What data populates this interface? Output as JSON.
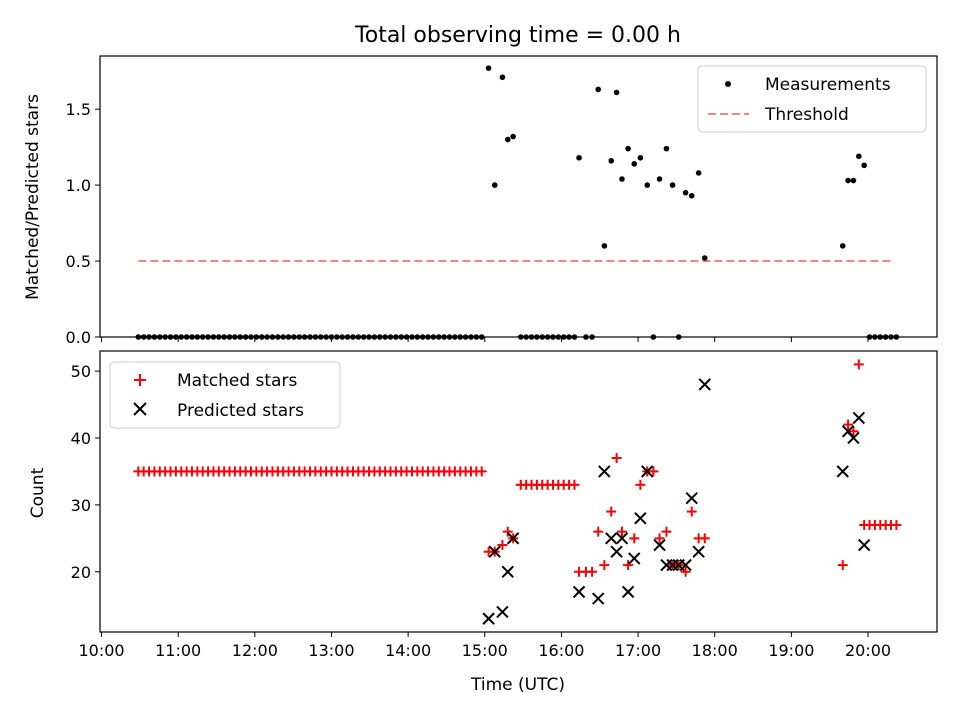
{
  "chart_data": [
    {
      "type": "scatter",
      "title": "Total observing time = 0.00 h",
      "xlabel": "",
      "ylabel": "Matched/Predicted stars",
      "xlim": [
        9.98,
        20.9
      ],
      "ylim": [
        0,
        1.85
      ],
      "yticks": [
        0.0,
        0.5,
        1.0,
        1.5
      ],
      "ytick_labels": [
        "0.0",
        "0.5",
        "1.0",
        "1.5"
      ],
      "legend": {
        "position": "top-right",
        "entries": [
          {
            "label": "Measurements",
            "marker": "dot",
            "color": "#000000"
          },
          {
            "label": "Threshold",
            "marker": "dashed-line",
            "color": "#ff7f7f"
          }
        ]
      },
      "threshold": {
        "value": 0.5,
        "x_start": 10.48,
        "x_end": 20.33
      },
      "series": [
        {
          "name": "Measurements",
          "x": [
            10.48,
            10.55,
            10.62,
            10.69,
            10.76,
            10.83,
            10.9,
            10.97,
            11.04,
            11.11,
            11.18,
            11.25,
            11.32,
            11.39,
            11.46,
            11.53,
            11.6,
            11.67,
            11.74,
            11.81,
            11.88,
            11.95,
            12.02,
            12.09,
            12.16,
            12.23,
            12.3,
            12.37,
            12.44,
            12.51,
            12.58,
            12.65,
            12.72,
            12.79,
            12.86,
            12.93,
            13.0,
            13.07,
            13.14,
            13.21,
            13.28,
            13.35,
            13.42,
            13.49,
            13.56,
            13.63,
            13.7,
            13.77,
            13.84,
            13.91,
            13.98,
            14.05,
            14.12,
            14.19,
            14.26,
            14.33,
            14.4,
            14.47,
            14.54,
            14.61,
            14.68,
            14.75,
            14.82,
            14.89,
            14.96,
            15.05,
            15.13,
            15.23,
            15.3,
            15.37,
            15.47,
            15.54,
            15.61,
            15.68,
            15.75,
            15.82,
            15.89,
            15.96,
            16.03,
            16.1,
            16.17,
            16.23,
            16.32,
            16.4,
            16.48,
            16.56,
            16.65,
            16.72,
            16.79,
            16.87,
            16.95,
            17.03,
            17.12,
            17.2,
            17.28,
            17.37,
            17.45,
            17.53,
            17.62,
            17.7,
            17.79,
            17.87,
            19.67,
            19.74,
            19.81,
            19.88,
            19.95,
            20.02,
            20.09,
            20.16,
            20.23,
            20.3,
            20.37
          ],
          "y": [
            0,
            0,
            0,
            0,
            0,
            0,
            0,
            0,
            0,
            0,
            0,
            0,
            0,
            0,
            0,
            0,
            0,
            0,
            0,
            0,
            0,
            0,
            0,
            0,
            0,
            0,
            0,
            0,
            0,
            0,
            0,
            0,
            0,
            0,
            0,
            0,
            0,
            0,
            0,
            0,
            0,
            0,
            0,
            0,
            0,
            0,
            0,
            0,
            0,
            0,
            0,
            0,
            0,
            0,
            0,
            0,
            0,
            0,
            0,
            0,
            0,
            0,
            0,
            0,
            0,
            1.77,
            1.0,
            1.71,
            1.3,
            1.32,
            0,
            0,
            0,
            0,
            0,
            0,
            0,
            0,
            0,
            0,
            0,
            1.18,
            0,
            0,
            1.63,
            0.6,
            1.16,
            1.61,
            1.04,
            1.24,
            1.14,
            1.18,
            1.0,
            0,
            1.04,
            1.24,
            1.0,
            0,
            0.95,
            0.93,
            1.08,
            0.52,
            0.6,
            1.03,
            1.03,
            1.19,
            1.13,
            0,
            0,
            0,
            0,
            0,
            0
          ]
        }
      ]
    },
    {
      "type": "scatter",
      "title": "",
      "xlabel": "Time (UTC)",
      "ylabel": "Count",
      "xlim": [
        9.98,
        20.9
      ],
      "ylim": [
        11,
        53
      ],
      "yticks": [
        20,
        30,
        40,
        50
      ],
      "ytick_labels": [
        "20",
        "30",
        "40",
        "50"
      ],
      "xticks": [
        10,
        11,
        12,
        13,
        14,
        15,
        16,
        17,
        18,
        19,
        20
      ],
      "xtick_labels": [
        "10:00",
        "11:00",
        "12:00",
        "13:00",
        "14:00",
        "15:00",
        "16:00",
        "17:00",
        "18:00",
        "19:00",
        "20:00"
      ],
      "legend": {
        "position": "top-left",
        "entries": [
          {
            "label": "Matched stars",
            "marker": "plus",
            "color": "#ff0000"
          },
          {
            "label": "Predicted stars",
            "marker": "x",
            "color": "#000000"
          }
        ]
      },
      "series": [
        {
          "name": "Matched stars",
          "x": [
            10.48,
            10.55,
            10.62,
            10.69,
            10.76,
            10.83,
            10.9,
            10.97,
            11.04,
            11.11,
            11.18,
            11.25,
            11.32,
            11.39,
            11.46,
            11.53,
            11.6,
            11.67,
            11.74,
            11.81,
            11.88,
            11.95,
            12.02,
            12.09,
            12.16,
            12.23,
            12.3,
            12.37,
            12.44,
            12.51,
            12.58,
            12.65,
            12.72,
            12.79,
            12.86,
            12.93,
            13.0,
            13.07,
            13.14,
            13.21,
            13.28,
            13.35,
            13.42,
            13.49,
            13.56,
            13.63,
            13.7,
            13.77,
            13.84,
            13.91,
            13.98,
            14.05,
            14.12,
            14.19,
            14.26,
            14.33,
            14.4,
            14.47,
            14.54,
            14.61,
            14.68,
            14.75,
            14.82,
            14.89,
            14.96,
            15.05,
            15.13,
            15.23,
            15.3,
            15.37,
            15.47,
            15.54,
            15.61,
            15.68,
            15.75,
            15.82,
            15.89,
            15.96,
            16.03,
            16.1,
            16.17,
            16.23,
            16.32,
            16.4,
            16.48,
            16.56,
            16.65,
            16.72,
            16.79,
            16.87,
            16.95,
            17.03,
            17.12,
            17.2,
            17.28,
            17.37,
            17.45,
            17.53,
            17.62,
            17.7,
            17.79,
            17.87,
            19.67,
            19.74,
            19.81,
            19.88,
            19.95,
            20.02,
            20.09,
            20.16,
            20.23,
            20.3,
            20.37
          ],
          "y": [
            35,
            35,
            35,
            35,
            35,
            35,
            35,
            35,
            35,
            35,
            35,
            35,
            35,
            35,
            35,
            35,
            35,
            35,
            35,
            35,
            35,
            35,
            35,
            35,
            35,
            35,
            35,
            35,
            35,
            35,
            35,
            35,
            35,
            35,
            35,
            35,
            35,
            35,
            35,
            35,
            35,
            35,
            35,
            35,
            35,
            35,
            35,
            35,
            35,
            35,
            35,
            35,
            35,
            35,
            35,
            35,
            35,
            35,
            35,
            35,
            35,
            35,
            35,
            35,
            35,
            23,
            23,
            24,
            26,
            25,
            33,
            33,
            33,
            33,
            33,
            33,
            33,
            33,
            33,
            33,
            33,
            20,
            20,
            20,
            26,
            21,
            29,
            37,
            26,
            21,
            25,
            33,
            35,
            35,
            25,
            26,
            21,
            21,
            20,
            29,
            25,
            25,
            21,
            42,
            41,
            51,
            27,
            27,
            27,
            27,
            27,
            27,
            27
          ]
        },
        {
          "name": "Predicted stars",
          "x": [
            15.05,
            15.13,
            15.23,
            15.3,
            15.37,
            16.23,
            16.48,
            16.56,
            16.65,
            16.72,
            16.79,
            16.87,
            16.95,
            17.03,
            17.12,
            17.28,
            17.37,
            17.45,
            17.53,
            17.62,
            17.7,
            17.79,
            17.87,
            19.67,
            19.74,
            19.81,
            19.88,
            19.95
          ],
          "y": [
            13,
            23,
            14,
            20,
            25,
            17,
            16,
            35,
            25,
            23,
            25,
            17,
            22,
            28,
            35,
            24,
            21,
            21,
            21,
            21,
            31,
            23,
            48,
            35,
            41,
            40,
            43,
            24
          ]
        }
      ]
    }
  ]
}
